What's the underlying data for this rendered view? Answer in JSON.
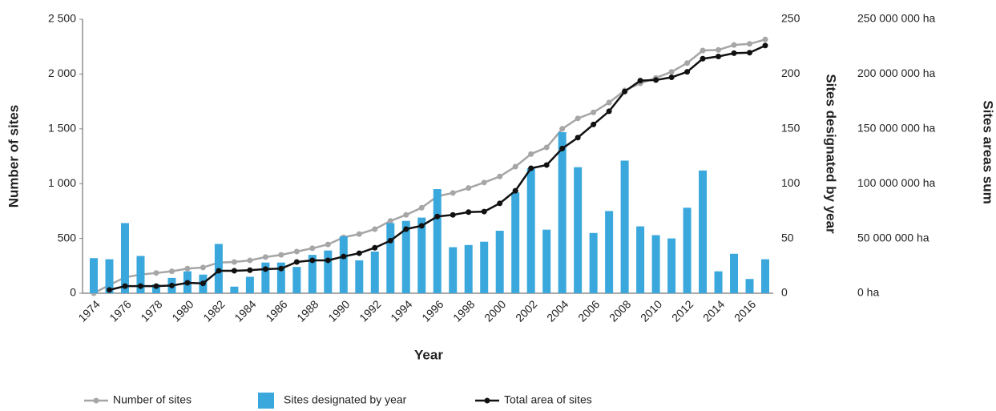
{
  "chart_data": {
    "type": "combo",
    "xlabel": "Year",
    "ylabel": "Number of sites",
    "y2label": "Sites designated by year",
    "y3label": "Sites areas sum",
    "categories": [
      "1974",
      null,
      "1976",
      null,
      "1978",
      null,
      "1980",
      null,
      "1982",
      null,
      "1984",
      null,
      "1986",
      null,
      "1988",
      null,
      "1990",
      null,
      "1992",
      null,
      "1994",
      null,
      "1996",
      null,
      "1998",
      null,
      "2000",
      null,
      "2002",
      null,
      "2004",
      null,
      "2006",
      null,
      "2008",
      null,
      "2010",
      null,
      "2012",
      null,
      "2014",
      null,
      "2016",
      null
    ],
    "ylim": [
      0,
      2500
    ],
    "yticks": [
      0,
      500,
      {
        "value": 1000,
        "label": "1 000"
      },
      {
        "value": 1500,
        "label": "1 500"
      },
      {
        "value": 2000,
        "label": "2 000"
      },
      {
        "value": 2500,
        "label": "2 500"
      }
    ],
    "y2lim": [
      0,
      250
    ],
    "y2ticks": [
      0,
      50,
      100,
      150,
      200,
      250
    ],
    "y3lim": [
      0,
      250000000
    ],
    "y3ticks": [
      {
        "value": 0,
        "label": "0 ha"
      },
      {
        "value": 50000000,
        "label": "50 000 000 ha"
      },
      {
        "value": 100000000,
        "label": "100 000 000 ha"
      },
      {
        "value": 150000000,
        "label": "150 000 000 ha"
      },
      {
        "value": 200000000,
        "label": "200 000 000 ha"
      },
      {
        "value": 250000000,
        "label": "250 000 000 ha"
      }
    ],
    "series": [
      {
        "name": "Number of sites",
        "kind": "line",
        "axis": "y",
        "color": "#a6a6a6",
        "values": [
          0,
          75,
          145,
          170,
          185,
          200,
          225,
          235,
          280,
          285,
          300,
          330,
          350,
          380,
          410,
          445,
          510,
          540,
          585,
          660,
          715,
          780,
          885,
          915,
          960,
          1010,
          1065,
          1155,
          1270,
          1330,
          1500,
          1595,
          1650,
          1740,
          1850,
          1915,
          1965,
          2020,
          2100,
          2215,
          2220,
          2265,
          2275,
          2315
        ]
      },
      {
        "name": "Sites designated by year",
        "kind": "bar",
        "axis": "y2",
        "color": "#3aa8dc",
        "values": [
          32,
          31,
          64,
          34,
          8,
          14,
          20,
          17,
          45,
          6,
          15,
          28,
          28,
          24,
          35,
          39,
          52,
          30,
          38,
          64,
          66,
          69,
          95,
          42,
          44,
          47,
          57,
          92,
          114,
          58,
          147,
          115,
          55,
          75,
          121,
          61,
          53,
          50,
          78,
          112,
          20,
          36,
          13,
          31
        ]
      },
      {
        "name": "Total area of sites",
        "kind": "line",
        "axis": "y3",
        "color": "#111111",
        "values": [
          null,
          3000000,
          6500000,
          6500000,
          6500000,
          7000000,
          9500000,
          9000000,
          20500000,
          20500000,
          21000000,
          22000000,
          22500000,
          28500000,
          30000000,
          30000000,
          33500000,
          36500000,
          41500000,
          48000000,
          58500000,
          61500000,
          70000000,
          71500000,
          74000000,
          74500000,
          82000000,
          93500000,
          114000000,
          117000000,
          132000000,
          142000000,
          154000000,
          166000000,
          184000000,
          194000000,
          194500000,
          197000000,
          202000000,
          214000000,
          216000000,
          219000000,
          219500000,
          226000000
        ]
      }
    ]
  }
}
